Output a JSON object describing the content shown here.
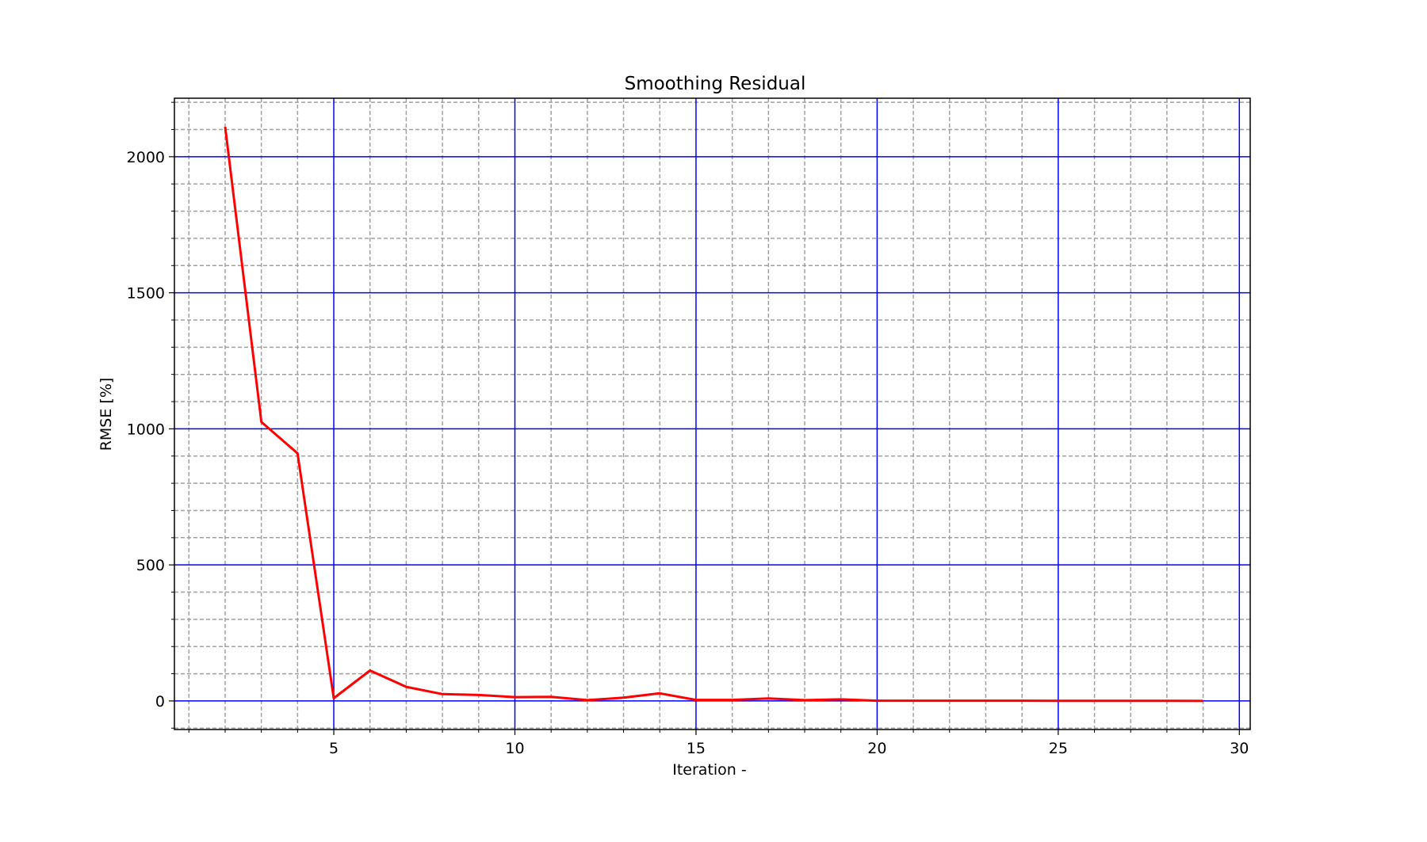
{
  "chart_data": {
    "type": "line",
    "title": "Smoothing Residual",
    "xlabel": "Iteration -",
    "ylabel": "RMSE [%]",
    "xlim": [
      0.6,
      30.3
    ],
    "ylim": [
      -105,
      2215
    ],
    "x_ticks": [
      5,
      10,
      15,
      20,
      25,
      30
    ],
    "y_ticks": [
      0,
      500,
      1000,
      1500,
      2000
    ],
    "x_minor_step": 1,
    "y_minor_step": 100,
    "grid": {
      "major": true,
      "major_color": "#0000ff",
      "minor": true,
      "minor_color": "#a0a0a0",
      "minor_style": "dashed"
    },
    "series": [
      {
        "color": "#ff0000",
        "x": [
          2,
          3,
          4,
          5,
          6,
          7,
          8,
          9,
          10,
          11,
          12,
          13,
          14,
          15,
          16,
          17,
          18,
          19,
          20,
          21,
          22,
          23,
          24,
          25,
          26,
          27,
          28,
          29
        ],
        "y": [
          2110,
          1025,
          910,
          10,
          112,
          52,
          25,
          22,
          14,
          15,
          3,
          12,
          28,
          4,
          4,
          9,
          3,
          6,
          1,
          1,
          1,
          1,
          1,
          0.5,
          0.5,
          0.3,
          0.3,
          0.2
        ]
      }
    ]
  }
}
